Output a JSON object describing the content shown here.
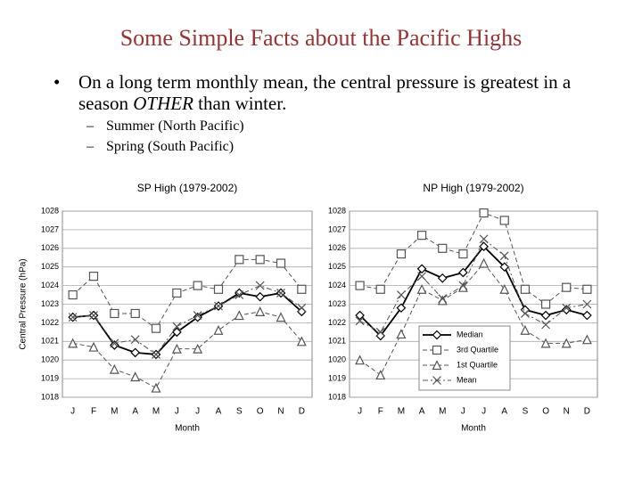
{
  "header": {
    "title": "Some Simple Facts about the Pacific Highs"
  },
  "bullets": [
    {
      "before": "On a long term monthly mean, the central pressure is greatest in a season ",
      "emphasis": "OTHER",
      "after": " than winter.",
      "sub": [
        "Summer (North Pacific)",
        "Spring (South Pacific)"
      ]
    }
  ],
  "chart_data": [
    {
      "type": "line",
      "title": "SP High (1979-2002)",
      "ylabel": "Central Pressure (hPa)",
      "xlabel": "Month",
      "categories": [
        "J",
        "F",
        "M",
        "A",
        "M",
        "J",
        "J",
        "A",
        "S",
        "O",
        "N",
        "D"
      ],
      "ylim": [
        1018,
        1028
      ],
      "yticks": [
        1018,
        1019,
        1020,
        1021,
        1022,
        1023,
        1024,
        1025,
        1026,
        1027,
        1028
      ],
      "grid": true,
      "series": [
        {
          "marker": "diamond",
          "line_style": "solid",
          "color": "#000000",
          "values": [
            1022.3,
            1022.4,
            1020.8,
            1020.4,
            1020.3,
            1021.5,
            1022.3,
            1022.9,
            1023.6,
            1023.4,
            1023.6,
            1022.6
          ]
        },
        {
          "marker": "square",
          "line_style": "dashed",
          "color": "#555555",
          "values": [
            1023.5,
            1024.5,
            1022.5,
            1022.5,
            1021.7,
            1023.6,
            1024.0,
            1023.8,
            1025.4,
            1025.4,
            1025.2,
            1023.8
          ]
        },
        {
          "marker": "triangle",
          "line_style": "dashed",
          "color": "#555555",
          "values": [
            1020.9,
            1020.7,
            1019.5,
            1019.1,
            1018.5,
            1020.6,
            1020.6,
            1021.6,
            1022.4,
            1022.6,
            1022.3,
            1021.0
          ]
        },
        {
          "marker": "x",
          "line_style": "dashdot",
          "color": "#555555",
          "values": [
            1022.3,
            1022.4,
            1020.9,
            1021.1,
            1020.3,
            1021.8,
            1022.4,
            1022.9,
            1023.5,
            1024.0,
            1023.6,
            1022.8
          ]
        }
      ]
    },
    {
      "type": "line",
      "title": "NP High (1979-2002)",
      "xlabel": "Month",
      "categories": [
        "J",
        "F",
        "M",
        "A",
        "M",
        "J",
        "J",
        "A",
        "S",
        "O",
        "N",
        "D"
      ],
      "ylim": [
        1018,
        1028
      ],
      "yticks": [
        1018,
        1019,
        1020,
        1021,
        1022,
        1023,
        1024,
        1025,
        1026,
        1027,
        1028
      ],
      "grid": true,
      "legend": "lower right",
      "series": [
        {
          "name": "Median",
          "marker": "diamond",
          "line_style": "solid",
          "color": "#000000",
          "values": [
            1022.4,
            1021.3,
            1022.8,
            1024.9,
            1024.4,
            1024.7,
            1026.1,
            1025.0,
            1022.7,
            1022.4,
            1022.7,
            1022.4
          ]
        },
        {
          "name": "3rd Quartile",
          "marker": "square",
          "line_style": "dashed",
          "color": "#555555",
          "values": [
            1024.0,
            1023.8,
            1025.7,
            1026.7,
            1026.0,
            1025.7,
            1027.9,
            1027.5,
            1023.8,
            1023.0,
            1023.9,
            1023.8
          ]
        },
        {
          "name": "1st Quartile",
          "marker": "triangle",
          "line_style": "dashed",
          "color": "#555555",
          "values": [
            1020.0,
            1019.2,
            1021.4,
            1023.8,
            1023.2,
            1023.9,
            1025.2,
            1023.8,
            1021.6,
            1020.9,
            1020.9,
            1021.1
          ]
        },
        {
          "name": "Mean",
          "marker": "x",
          "line_style": "dashdot",
          "color": "#555555",
          "values": [
            1022.1,
            1021.5,
            1023.5,
            1024.5,
            1023.3,
            1024.0,
            1026.5,
            1025.6,
            1022.5,
            1021.9,
            1022.8,
            1023.0
          ]
        }
      ]
    }
  ]
}
